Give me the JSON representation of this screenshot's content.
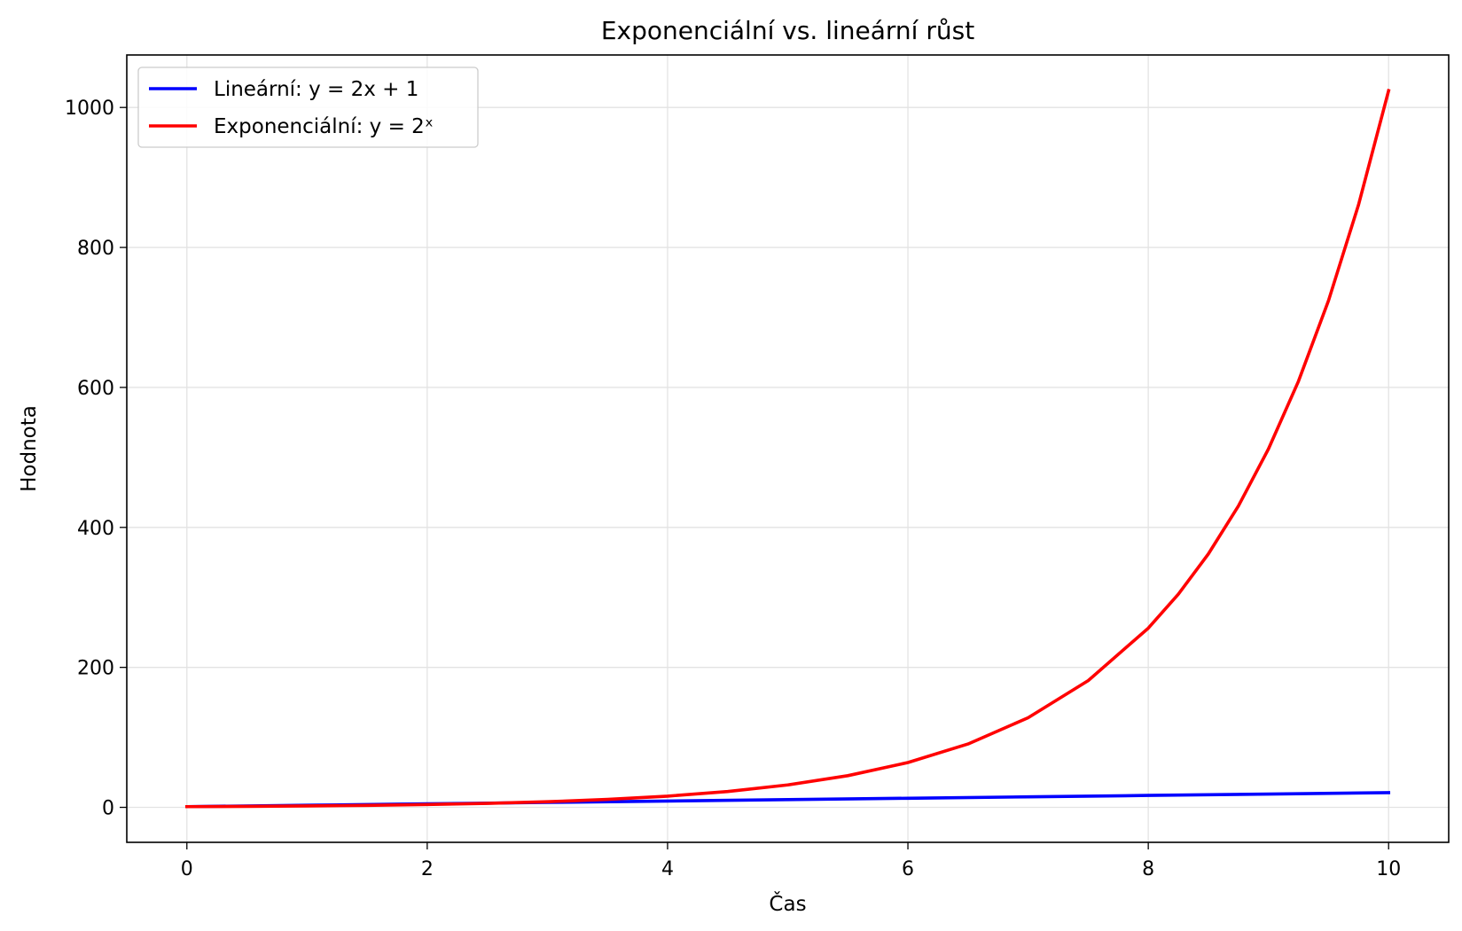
{
  "chart_data": {
    "type": "line",
    "title": "Exponenciální vs. lineární růst",
    "xlabel": "Čas",
    "ylabel": "Hodnota",
    "xlim": [
      -0.5,
      10.5
    ],
    "ylim": [
      -50,
      1075
    ],
    "xticks": [
      0,
      2,
      4,
      6,
      8,
      10
    ],
    "yticks": [
      0,
      200,
      400,
      600,
      800,
      1000
    ],
    "grid": true,
    "legend_position": "top-left",
    "series": [
      {
        "name": "Lineární: y = 2x + 1",
        "color": "#0000ff",
        "x": [
          0,
          1,
          2,
          3,
          4,
          5,
          6,
          7,
          8,
          9,
          10
        ],
        "y": [
          1,
          3,
          5,
          7,
          9,
          11,
          13,
          15,
          17,
          19,
          21
        ]
      },
      {
        "name": "Exponenciální: y = 2ˣ",
        "color": "#ff0000",
        "x": [
          0,
          0.5,
          1,
          1.5,
          2,
          2.5,
          3,
          3.5,
          4,
          4.5,
          5,
          5.5,
          6,
          6.5,
          7,
          7.5,
          8,
          8.25,
          8.5,
          8.75,
          9,
          9.25,
          9.5,
          9.75,
          10
        ],
        "y": [
          1,
          1.41,
          2,
          2.83,
          4,
          5.66,
          8,
          11.31,
          16,
          22.63,
          32,
          45.25,
          64,
          90.51,
          128,
          181.02,
          256,
          304.44,
          362.04,
          430.54,
          512,
          608.87,
          724.08,
          861.08,
          1024
        ]
      }
    ]
  }
}
